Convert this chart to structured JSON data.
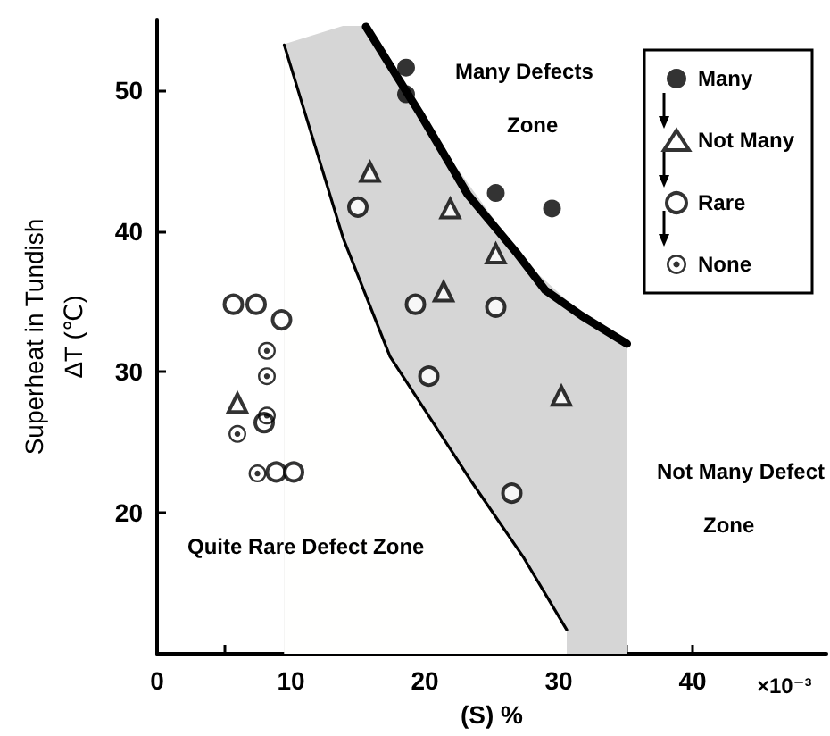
{
  "chart_data": {
    "type": "scatter",
    "xlabel": "(S) %",
    "ylabel": "Superheat in Tundish\nΔT (℃)",
    "xlim": [
      0,
      50
    ],
    "xticks": [
      0,
      {
        "value": 5,
        "label": null
      },
      10,
      {
        "value": 15,
        "label": null
      },
      20,
      {
        "value": 25,
        "label": null
      },
      30,
      {
        "value": 35,
        "label": null
      },
      40
    ],
    "ylim": [
      10,
      55
    ],
    "yticks": [
      20,
      30,
      40,
      50
    ],
    "grid": false,
    "legend": "top right",
    "annotations": [
      "Many Defects",
      "Zone",
      "Not Many Defect",
      "Zone",
      "Quite Rare Defect Zone",
      "×10⁻³"
    ],
    "series": [
      {
        "type": "area",
        "color": "#d6d6d6",
        "x": [
          9.5,
          13.9,
          15.6,
          17.4,
          19.6,
          20.9,
          23.5,
          27.4,
          30.6,
          31.7,
          32.2,
          34.3,
          35.1
        ],
        "values": [
          53.2,
          54.5,
          54.5,
          51.5,
          48.4,
          46.4,
          42.9,
          37.8,
          35.0,
          34.0,
          33.6,
          32.4,
          32.0
        ]
      },
      {
        "type": "line",
        "color": "#000000",
        "x": [
          9.5,
          13.9,
          17.4,
          20.9,
          23.5,
          27.4,
          30.6
        ],
        "values": [
          53.2,
          39.5,
          31.1,
          26.0,
          22.2,
          16.8,
          11.7
        ],
        "marker": "none"
      },
      {
        "type": "line",
        "color": "#000000",
        "x": [
          15.6,
          19.6,
          23.2,
          26.9,
          29.0,
          31.7,
          35.1
        ],
        "values": [
          54.5,
          48.4,
          42.6,
          38.4,
          35.8,
          34.0,
          32.0
        ],
        "marker": "none"
      },
      {
        "name": "Many",
        "color": "#000000",
        "marker": "circle",
        "x": [
          18.6,
          18.6,
          25.3,
          29.5
        ],
        "values": [
          51.6,
          49.7,
          42.7,
          41.6
        ]
      },
      {
        "name": "Not Many",
        "color": "#000000",
        "marker": "triangle",
        "x": [
          6.0,
          15.9,
          21.9,
          25.3,
          21.4,
          30.2
        ],
        "values": [
          27.8,
          44.2,
          41.6,
          38.4,
          35.7,
          28.3
        ]
      },
      {
        "name": "Rare",
        "color": "#000000",
        "marker": "circle-open",
        "x": [
          5.7,
          7.4,
          9.3,
          8.0,
          8.9,
          10.2,
          15.0,
          19.3,
          25.3,
          20.3,
          26.5
        ],
        "values": [
          34.8,
          34.8,
          33.7,
          26.4,
          22.9,
          22.9,
          41.7,
          34.8,
          34.6,
          29.7,
          21.4
        ]
      },
      {
        "name": "None",
        "color": "#000000",
        "x": [
          6.0,
          8.2,
          8.2,
          8.2,
          7.5
        ],
        "values": [
          25.6,
          31.5,
          29.7,
          26.9,
          22.8
        ]
      }
    ]
  }
}
